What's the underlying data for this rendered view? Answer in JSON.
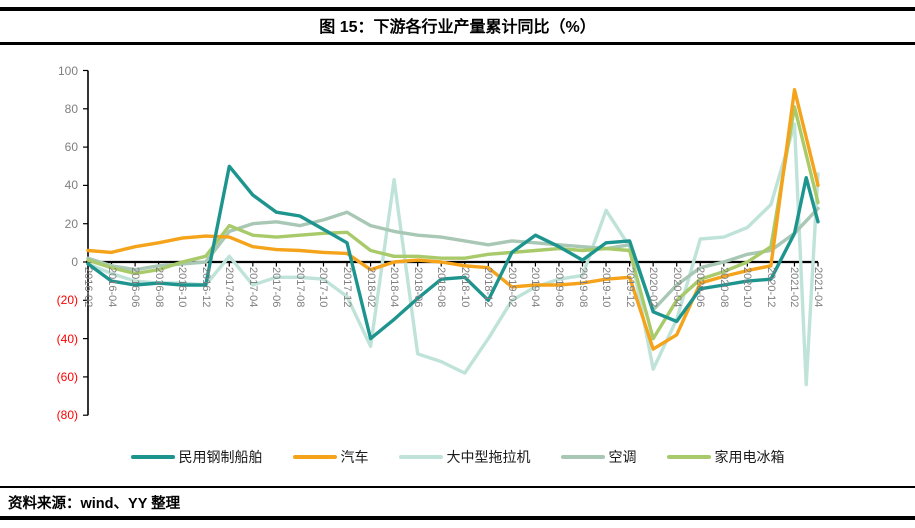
{
  "title": "图 15：下游各行业产量累计同比（%）",
  "footer": {
    "source_text": "资料来源：wind、YY 整理"
  },
  "chart_data": {
    "type": "line",
    "title": "图 15：下游各行业产量累计同比（%）",
    "unit": "%",
    "grid": false,
    "legend_position": "bottom",
    "categories": [
      "2016-02",
      "2016-04",
      "2016-06",
      "2016-08",
      "2016-10",
      "2016-12",
      "2017-02",
      "2017-04",
      "2017-06",
      "2017-08",
      "2017-10",
      "2017-12",
      "2018-02",
      "2018-04",
      "2018-06",
      "2018-08",
      "2018-10",
      "2018-12",
      "2019-02",
      "2019-04",
      "2019-06",
      "2019-08",
      "2019-10",
      "2019-12",
      "2020-02",
      "2020-04",
      "2020-06",
      "2020-08",
      "2020-10",
      "2020-12",
      "2021-02",
      "2021-04"
    ],
    "y_axis": {
      "min": -80,
      "max": 100,
      "step": 20,
      "tick_labels": [
        "100",
        "80",
        "60",
        "40",
        "20",
        "0",
        "(20)",
        "(40)",
        "(60)",
        "(80)"
      ],
      "negative_label_color": "#ff0000",
      "positive_label_color": "#7f7f7f"
    },
    "series": [
      {
        "name": "民用钢制船舶",
        "color": "#1e948e",
        "values": [
          -1,
          -10,
          -12,
          -11,
          -12,
          -12,
          50,
          35,
          26,
          24,
          17,
          10,
          -40,
          -30,
          -19,
          -9,
          -8,
          -20,
          5,
          14,
          8,
          1,
          10,
          11,
          -26,
          -31,
          -14,
          -12,
          -10,
          -9,
          15,
          21
        ],
        "extra_points": [
          [
            30.5,
            44
          ]
        ]
      },
      {
        "name": "汽车",
        "color": "#f5a31b",
        "values": [
          6,
          5,
          8,
          10,
          12.5,
          13.5,
          13,
          8,
          6.5,
          6,
          5,
          4.5,
          -4,
          0,
          1,
          0,
          -2,
          -3,
          -13,
          -12,
          -12,
          -11,
          -9,
          -8,
          -45.5,
          -38,
          -11,
          -7.5,
          -4.5,
          -2,
          90,
          40
        ],
        "extra_points": []
      },
      {
        "name": "大中型拖拉机",
        "color": "#bfe3d9",
        "values": [
          -1,
          -6,
          -10,
          -11,
          -11,
          -12,
          3,
          -12,
          -8,
          -8,
          -9,
          -18,
          -44,
          43,
          -48,
          -52,
          -58,
          -40,
          -20,
          -13,
          -9,
          -7,
          27,
          8,
          -56,
          -30,
          12,
          13,
          18,
          30,
          72,
          46
        ],
        "extra_points": [
          [
            30.5,
            -64
          ]
        ]
      },
      {
        "name": "空调",
        "color": "#a8c7b4",
        "values": [
          2,
          -2,
          -4,
          -2,
          -1,
          0,
          16,
          20,
          21,
          19,
          22,
          26,
          19,
          16,
          14,
          13,
          11,
          9,
          11,
          10,
          9,
          8,
          7,
          9,
          -25,
          -12,
          -3,
          0,
          4,
          6,
          15,
          28
        ],
        "extra_points": []
      },
      {
        "name": "家用电冰箱",
        "color": "#a9ca6a",
        "values": [
          1,
          -3,
          -6,
          -4,
          0,
          3,
          19,
          14,
          13,
          14,
          15,
          15.5,
          6,
          3,
          3,
          2,
          2,
          4,
          5,
          6,
          7,
          6,
          7,
          6,
          -40,
          -20,
          -9,
          -5,
          0,
          8,
          81,
          31
        ],
        "extra_points": []
      }
    ]
  }
}
